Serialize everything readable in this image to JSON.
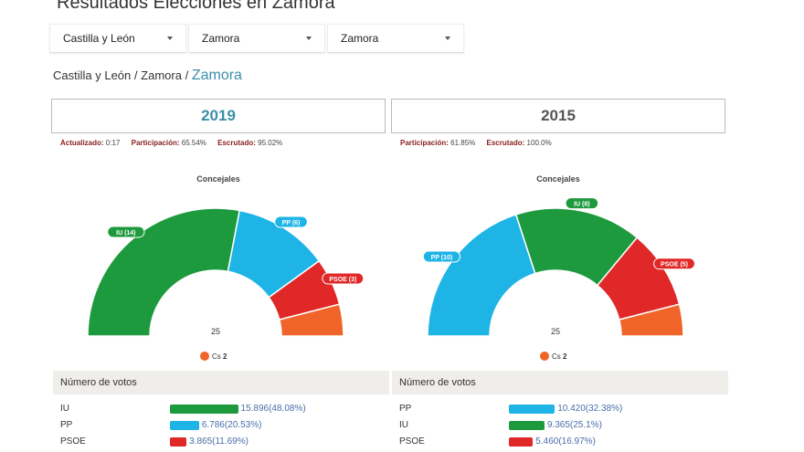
{
  "page": {
    "title": "Resultados Elecciones en Zamora"
  },
  "filters": [
    {
      "label": "Castilla y León"
    },
    {
      "label": "Zamora"
    },
    {
      "label": "Zamora"
    }
  ],
  "breadcrumb": {
    "part1": "Castilla y León",
    "part2": "Zamora",
    "current": "Zamora",
    "sep": "/"
  },
  "left": {
    "year": "2019",
    "stats": {
      "updated_label": "Actualizado:",
      "updated_value": "0:17",
      "participation_label": "Participación:",
      "participation_value": "65.54%",
      "counted_label": "Escrutado:",
      "counted_value": "95.02%"
    },
    "chart_title": "Concejales",
    "total": "25",
    "cs_label": "Cs",
    "cs_value": "2",
    "votes_header": "Número de votos",
    "votes": [
      {
        "party": "IU",
        "value": "15.896(48.08%)",
        "pct": 48.08,
        "color": "#1e9a3e"
      },
      {
        "party": "PP",
        "value": "6.786(20.53%)",
        "pct": 20.53,
        "color": "#1eb4e6"
      },
      {
        "party": "PSOE",
        "value": "3.865(11.69%)",
        "pct": 11.69,
        "color": "#e02828"
      }
    ]
  },
  "right": {
    "year": "2015",
    "stats": {
      "participation_label": "Participación:",
      "participation_value": "61.85%",
      "counted_label": "Escrutado:",
      "counted_value": "100.0%"
    },
    "chart_title": "Concejales",
    "total": "25",
    "cs_label": "Cs",
    "cs_value": "2",
    "votes_header": "Número de votos",
    "votes": [
      {
        "party": "PP",
        "value": "10.420(32.38%)",
        "pct": 32.38,
        "color": "#1eb4e6"
      },
      {
        "party": "IU",
        "value": "9.365(25.1%)",
        "pct": 25.1,
        "color": "#1e9a3e"
      },
      {
        "party": "PSOE",
        "value": "5.460(16.97%)",
        "pct": 16.97,
        "color": "#e02828"
      }
    ]
  },
  "chart_data": [
    {
      "type": "pie",
      "title": "Concejales",
      "total": 25,
      "seats": [
        {
          "party": "IU",
          "value": 14,
          "label": "IU (14)",
          "color": "#1e9a3e"
        },
        {
          "party": "PP",
          "value": 6,
          "label": "PP (6)",
          "color": "#1eb4e6"
        },
        {
          "party": "PSOE",
          "value": 3,
          "label": "PSOE (3)",
          "color": "#e02828"
        },
        {
          "party": "Cs",
          "value": 2,
          "label": "",
          "color": "#f0642a"
        }
      ]
    },
    {
      "type": "pie",
      "title": "Concejales",
      "total": 25,
      "seats": [
        {
          "party": "PP",
          "value": 10,
          "label": "PP (10)",
          "color": "#1eb4e6"
        },
        {
          "party": "IU",
          "value": 8,
          "label": "IU (8)",
          "color": "#1e9a3e"
        },
        {
          "party": "PSOE",
          "value": 5,
          "label": "PSOE (5)",
          "color": "#e02828"
        },
        {
          "party": "Cs",
          "value": 2,
          "label": "",
          "color": "#f0642a"
        }
      ]
    }
  ]
}
